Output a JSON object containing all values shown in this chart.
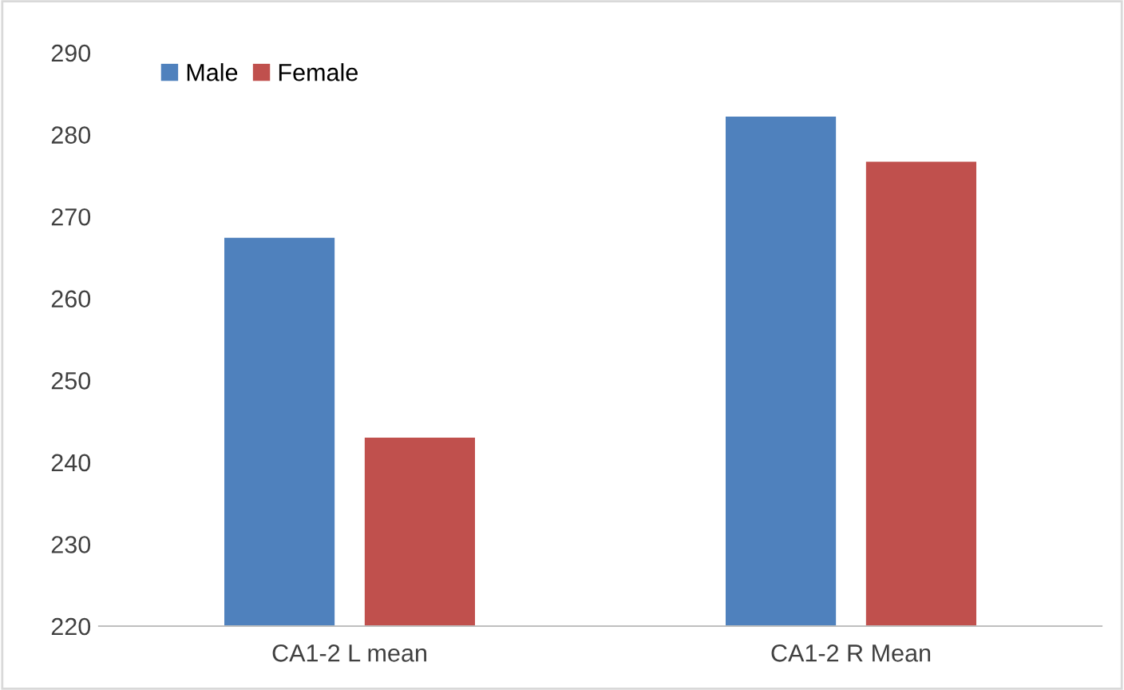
{
  "chart_data": {
    "type": "bar",
    "categories": [
      "CA1-2 L mean",
      "CA1-2 R Mean"
    ],
    "series": [
      {
        "name": "Male",
        "color": "#4f81bd",
        "values": [
          267.4,
          282.2
        ]
      },
      {
        "name": "Female",
        "color": "#c0504d",
        "values": [
          243.0,
          276.7
        ]
      }
    ],
    "ylim": [
      220,
      290
    ],
    "yticks": [
      220,
      230,
      240,
      250,
      260,
      270,
      280,
      290
    ],
    "grid": false,
    "legend": "top left"
  }
}
